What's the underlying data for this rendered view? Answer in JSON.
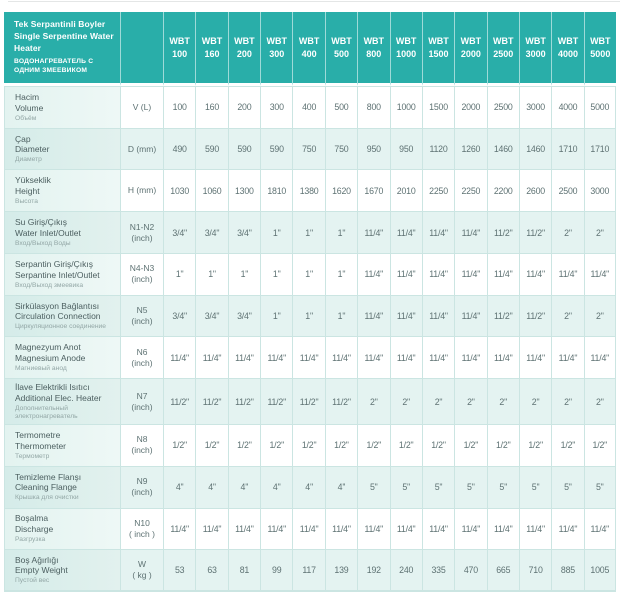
{
  "table": {
    "title_tr": "Tek Serpantinli Boyler",
    "title_en": "Single Serpentine Water Heater",
    "title_ru": "ВОДОНАГРЕВАТЕЛЬ С ОДНИМ ЗМЕЕВИКОМ",
    "columns": [
      {
        "line1": "WBT",
        "line2": "100"
      },
      {
        "line1": "WBT",
        "line2": "160"
      },
      {
        "line1": "WBT",
        "line2": "200"
      },
      {
        "line1": "WBT",
        "line2": "300"
      },
      {
        "line1": "WBT",
        "line2": "400"
      },
      {
        "line1": "WBT",
        "line2": "500"
      },
      {
        "line1": "WBT",
        "line2": "800"
      },
      {
        "line1": "WBT",
        "line2": "1000"
      },
      {
        "line1": "WBT",
        "line2": "1500"
      },
      {
        "line1": "WBT",
        "line2": "2000"
      },
      {
        "line1": "WBT",
        "line2": "2500"
      },
      {
        "line1": "WBT",
        "line2": "3000"
      },
      {
        "line1": "WBT",
        "line2": "4000"
      },
      {
        "line1": "WBT",
        "line2": "5000"
      }
    ],
    "rows": [
      {
        "label_tr": "Hacim",
        "label_en": "Volume",
        "label_ru": "Объём",
        "unit1": "V (L)",
        "unit2": "",
        "values": [
          "100",
          "160",
          "200",
          "300",
          "400",
          "500",
          "800",
          "1000",
          "1500",
          "2000",
          "2500",
          "3000",
          "4000",
          "5000"
        ]
      },
      {
        "label_tr": "Çap",
        "label_en": "Diameter",
        "label_ru": "Диаметр",
        "unit1": "D (mm)",
        "unit2": "",
        "values": [
          "490",
          "590",
          "590",
          "590",
          "750",
          "750",
          "950",
          "950",
          "1120",
          "1260",
          "1460",
          "1460",
          "1710",
          "1710"
        ]
      },
      {
        "label_tr": "Yükseklik",
        "label_en": "Height",
        "label_ru": "Высота",
        "unit1": "H (mm)",
        "unit2": "",
        "values": [
          "1030",
          "1060",
          "1300",
          "1810",
          "1380",
          "1620",
          "1670",
          "2010",
          "2250",
          "2250",
          "2200",
          "2600",
          "2500",
          "3000"
        ]
      },
      {
        "label_tr": "Su Giriş/Çıkış",
        "label_en": "Water Inlet/Outlet",
        "label_ru": "Вход/Выход Воды",
        "unit1": "N1-N2",
        "unit2": "(inch)",
        "values": [
          "3/4\"",
          "3/4\"",
          "3/4\"",
          "1\"",
          "1\"",
          "1\"",
          "11/4\"",
          "11/4\"",
          "11/4\"",
          "11/4\"",
          "11/2\"",
          "11/2\"",
          "2\"",
          "2\""
        ]
      },
      {
        "label_tr": "Serpantin Giriş/Çıkış",
        "label_en": "Serpantine Inlet/Outlet",
        "label_ru": "Вход/Выход змеевика",
        "unit1": "N4-N3",
        "unit2": "(inch)",
        "values": [
          "1\"",
          "1\"",
          "1\"",
          "1\"",
          "1\"",
          "1\"",
          "11/4\"",
          "11/4\"",
          "11/4\"",
          "11/4\"",
          "11/4\"",
          "11/4\"",
          "11/4\"",
          "11/4\""
        ]
      },
      {
        "label_tr": "Sirkülasyon Bağlantısı",
        "label_en": "Circulation Connection",
        "label_ru": "Циркуляционное соединение",
        "unit1": "N5",
        "unit2": "(inch)",
        "values": [
          "3/4\"",
          "3/4\"",
          "3/4\"",
          "1\"",
          "1\"",
          "1\"",
          "11/4\"",
          "11/4\"",
          "11/4\"",
          "11/4\"",
          "11/2\"",
          "11/2\"",
          "2\"",
          "2\""
        ]
      },
      {
        "label_tr": "Magnezyum Anot",
        "label_en": "Magnesium Anode",
        "label_ru": "Магниевый анод",
        "unit1": "N6",
        "unit2": "(inch)",
        "values": [
          "11/4\"",
          "11/4\"",
          "11/4\"",
          "11/4\"",
          "11/4\"",
          "11/4\"",
          "11/4\"",
          "11/4\"",
          "11/4\"",
          "11/4\"",
          "11/4\"",
          "11/4\"",
          "11/4\"",
          "11/4\""
        ]
      },
      {
        "label_tr": "İlave Elektrikli Isıtıcı",
        "label_en": "Additional Elec. Heater",
        "label_ru": "Дополнительный электронагреватель",
        "unit1": "N7",
        "unit2": "(inch)",
        "values": [
          "11/2\"",
          "11/2\"",
          "11/2\"",
          "11/2\"",
          "11/2\"",
          "11/2\"",
          "2\"",
          "2\"",
          "2\"",
          "2\"",
          "2\"",
          "2\"",
          "2\"",
          "2\""
        ]
      },
      {
        "label_tr": "Termometre",
        "label_en": "Thermometer",
        "label_ru": "Термометр",
        "unit1": "N8",
        "unit2": "(inch)",
        "values": [
          "1/2\"",
          "1/2\"",
          "1/2\"",
          "1/2\"",
          "1/2\"",
          "1/2\"",
          "1/2\"",
          "1/2\"",
          "1/2\"",
          "1/2\"",
          "1/2\"",
          "1/2\"",
          "1/2\"",
          "1/2\""
        ]
      },
      {
        "label_tr": "Temizleme Flanşı",
        "label_en": "Cleaning Flange",
        "label_ru": "Крышка для очистки",
        "unit1": "N9",
        "unit2": "(inch)",
        "values": [
          "4''",
          "4''",
          "4''",
          "4''",
          "4''",
          "4''",
          "5''",
          "5''",
          "5''",
          "5''",
          "5''",
          "5''",
          "5''",
          "5''"
        ]
      },
      {
        "label_tr": "Boşalma",
        "label_en": "Discharge",
        "label_ru": "Разгрузка",
        "unit1": "N10",
        "unit2": "( inch )",
        "values": [
          "11/4\"",
          "11/4\"",
          "11/4\"",
          "11/4\"",
          "11/4\"",
          "11/4\"",
          "11/4\"",
          "11/4\"",
          "11/4\"",
          "11/4\"",
          "11/4\"",
          "11/4\"",
          "11/4\"",
          "11/4\""
        ]
      },
      {
        "label_tr": "Boş Ağırlığı",
        "label_en": "Empty Weight",
        "label_ru": "Пустой вес",
        "unit1": "W",
        "unit2": "( kg )",
        "values": [
          "53",
          "63",
          "81",
          "99",
          "117",
          "139",
          "192",
          "240",
          "335",
          "470",
          "665",
          "710",
          "885",
          "1005"
        ]
      }
    ]
  },
  "colors": {
    "header_teal": "#29aea9",
    "row_mint": "#e4f3f1",
    "row_white": "#ffffff",
    "grid_border": "#cbe5e2",
    "header_text": "#ffffff",
    "body_text": "#5e7273",
    "label_text": "#4c5f60",
    "label_ru_text": "#93a7a6"
  }
}
